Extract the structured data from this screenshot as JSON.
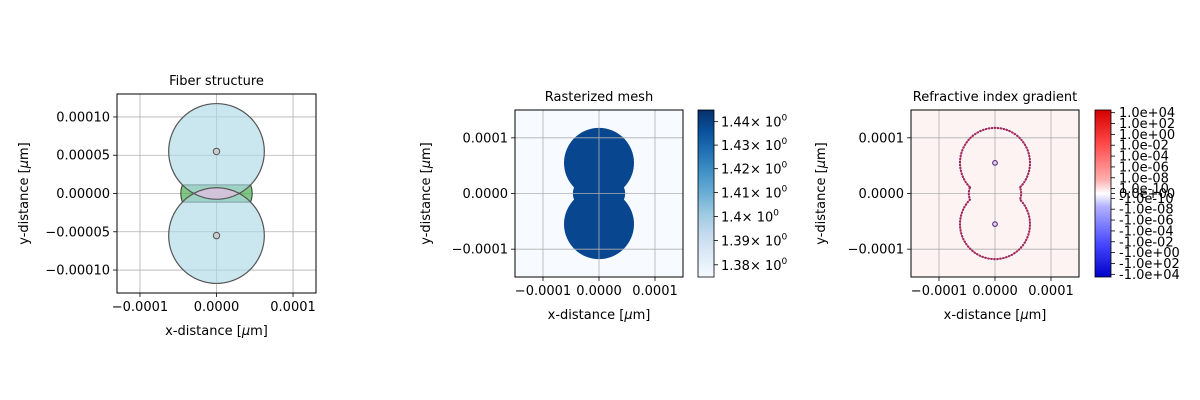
{
  "chart_data": [
    {
      "type": "diagram",
      "title": "Fiber structure",
      "xlabel": "x-distance [$\\mu$m]",
      "ylabel": "y-distance [$\\mu$m]",
      "xlim": [
        -0.00013,
        0.00013
      ],
      "ylim": [
        -0.00013,
        0.00013
      ],
      "xticks": [
        -0.0001,
        0.0,
        0.0001
      ],
      "xtick_labels": [
        "−0.0001",
        "0.0000",
        "0.0001"
      ],
      "yticks": [
        0.0001,
        5e-05,
        0.0,
        -5e-05,
        -0.0001
      ],
      "ytick_labels": [
        "0.00010",
        "0.00005",
        "0.00000",
        "−0.00005",
        "−0.00010"
      ],
      "grid": true,
      "shapes": [
        {
          "kind": "circle",
          "cx": 0,
          "cy": 5.5e-05,
          "r": 6.25e-05,
          "fill": "#add8e6",
          "opacity": 0.6
        },
        {
          "kind": "circle",
          "cx": 0,
          "cy": -5.5e-05,
          "r": 6.25e-05,
          "fill": "#add8e6",
          "opacity": 0.6
        },
        {
          "kind": "circle",
          "cx": 0,
          "cy": 5.5e-05,
          "r": 3.5e-06,
          "fill": "#cccccc",
          "opacity": 0.8
        },
        {
          "kind": "circle",
          "cx": 0,
          "cy": -5.5e-05,
          "r": 3.5e-06,
          "fill": "#cccccc",
          "opacity": 0.8
        }
      ],
      "colors": {
        "cladding": "#add8e6",
        "overlap": "#d8bfd8",
        "filler": "#4caf50"
      }
    },
    {
      "type": "heatmap",
      "title": "Rasterized mesh",
      "xlabel": "x-distance [$\\mu$m]",
      "ylabel": "y-distance [$\\mu$m]",
      "xlim": [
        -0.00015,
        0.00015
      ],
      "ylim": [
        -0.00015,
        0.00015
      ],
      "xticks": [
        -0.0001,
        0.0,
        0.0001
      ],
      "xtick_labels": [
        "−0.0001",
        "0.0000",
        "0.0001"
      ],
      "yticks": [
        0.0001,
        0.0,
        -0.0001
      ],
      "ytick_labels": [
        "0.0001",
        "0.0000",
        "−0.0001"
      ],
      "grid": true,
      "colormap": "Blues",
      "colorbar": {
        "scale": "log",
        "range": [
          1.375,
          1.445
        ],
        "ticks": [
          1.44,
          1.43,
          1.42,
          1.41,
          1.4,
          1.39,
          1.38
        ],
        "tick_mantissas": [
          "1.44",
          "1.43",
          "1.42",
          "1.41",
          "1.4",
          "1.39",
          "1.38"
        ],
        "tick_base": "× 10",
        "tick_exponent": "0"
      },
      "values": {
        "background": 1.375,
        "core": 1.445
      }
    },
    {
      "type": "heatmap",
      "title": "Refractive index gradient",
      "xlabel": "x-distance [$\\mu$m]",
      "ylabel": "y-distance [$\\mu$m]",
      "xlim": [
        -0.00015,
        0.00015
      ],
      "ylim": [
        -0.00015,
        0.00015
      ],
      "xticks": [
        -0.0001,
        0.0,
        0.0001
      ],
      "xtick_labels": [
        "−0.0001",
        "0.0000",
        "0.0001"
      ],
      "yticks": [
        0.0001,
        0.0,
        -0.0001
      ],
      "ytick_labels": [
        "0.0001",
        "0.0000",
        "−0.0001"
      ],
      "grid": true,
      "colormap": "seismic",
      "colorbar": {
        "scale": "symlog",
        "tick_labels": [
          "1.0e+04",
          "1.0e+02",
          "1.0e+00",
          "1.0e-02",
          "1.0e-04",
          "1.0e-06",
          "1.0e-08",
          "1.0e-10",
          "0.0e+00",
          "-1.0e-10",
          "-1.0e-08",
          "-1.0e-06",
          "-1.0e-04",
          "-1.0e-02",
          "-1.0e+00",
          "-1.0e+02",
          "-1.0e+04"
        ]
      }
    }
  ]
}
